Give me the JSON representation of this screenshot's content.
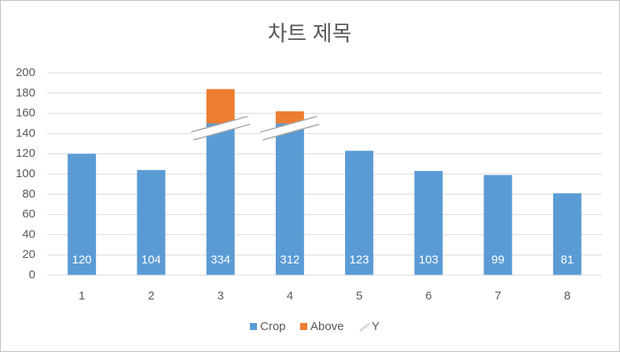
{
  "chart_data": {
    "type": "bar",
    "title": "차트 제목",
    "categories": [
      "1",
      "2",
      "3",
      "4",
      "5",
      "6",
      "7",
      "8"
    ],
    "series": [
      {
        "name": "Crop",
        "color": "#5b9bd5",
        "values": [
          120,
          104,
          150,
          150,
          123,
          103,
          99,
          81
        ]
      },
      {
        "name": "Above",
        "color": "#ed7d31",
        "values": [
          null,
          null,
          34,
          12,
          null,
          null,
          null,
          null
        ]
      },
      {
        "name": "Y",
        "color": "#d9d9d9",
        "values": [
          null,
          null,
          150,
          150,
          null,
          null,
          null,
          null
        ]
      }
    ],
    "point_labels": [
      "120",
      "104",
      "334",
      "312",
      "123",
      "103",
      "99",
      "81"
    ],
    "ylim": [
      0,
      200
    ],
    "yticks": [
      0,
      20,
      40,
      60,
      80,
      100,
      120,
      140,
      160,
      180,
      200
    ],
    "grid": true,
    "legend": "bottom"
  }
}
